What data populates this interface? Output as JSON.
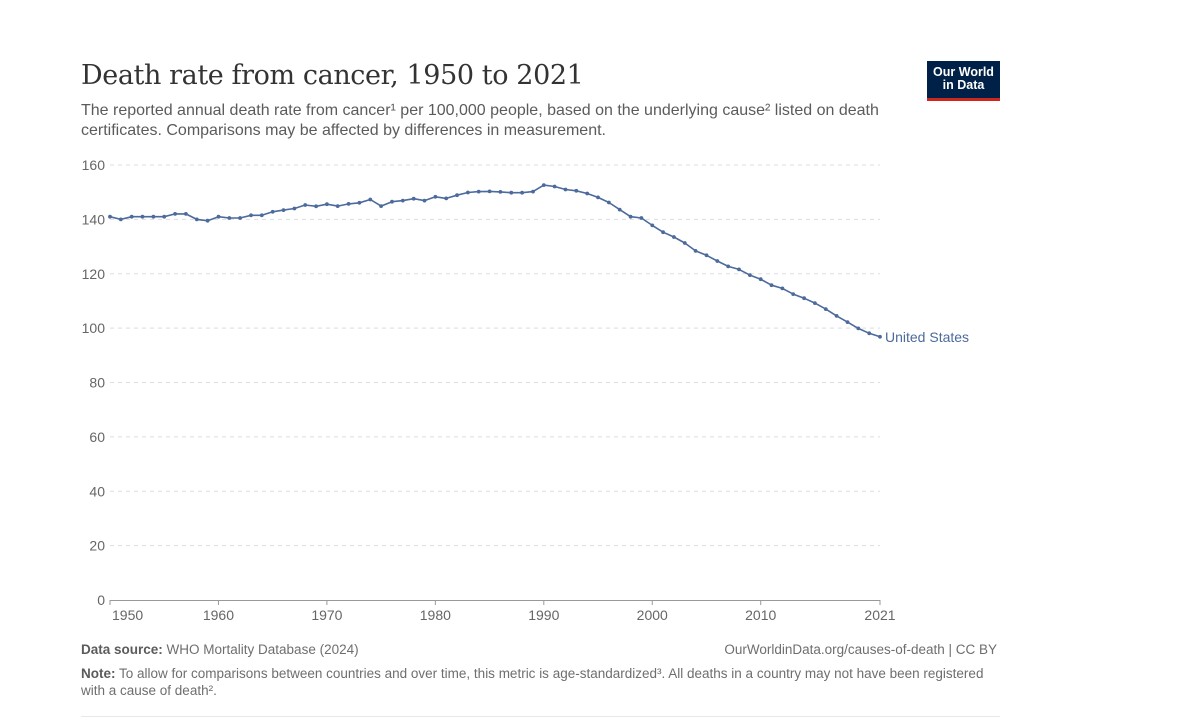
{
  "header": {
    "title": "Death rate from cancer, 1950 to 2021",
    "subtitle": "The reported annual death rate from cancer¹ per 100,000 people, based on the underlying cause² listed on death certificates. Comparisons may be affected by differences in measurement."
  },
  "logo": {
    "line1": "Our World",
    "line2": "in Data",
    "bg_color": "#002147",
    "accent_color": "#ce261e"
  },
  "footer": {
    "source_label": "Data source:",
    "source_text": " WHO Mortality Database (2024)",
    "url_text": "OurWorldinData.org/causes-of-death | CC BY",
    "note_label": "Note:",
    "note_text": " To allow for comparisons between countries and over time, this metric is age-standardized³. All deaths in a country may not have been registered with a cause of death²."
  },
  "chart_data": {
    "type": "line",
    "xlim": [
      1950,
      2021
    ],
    "ylim": [
      0,
      160
    ],
    "x_ticks": [
      1950,
      1960,
      1970,
      1980,
      1990,
      2000,
      2010,
      2021
    ],
    "y_ticks": [
      0,
      20,
      40,
      60,
      80,
      100,
      120,
      140,
      160
    ],
    "grid": "horizontal dashed",
    "legend": "end-of-line label",
    "series": [
      {
        "name": "United States",
        "color": "#4c6a9c",
        "x": [
          1950,
          1951,
          1952,
          1953,
          1954,
          1955,
          1956,
          1957,
          1958,
          1959,
          1960,
          1961,
          1962,
          1963,
          1964,
          1965,
          1966,
          1967,
          1968,
          1969,
          1970,
          1971,
          1972,
          1973,
          1974,
          1975,
          1976,
          1977,
          1978,
          1979,
          1980,
          1981,
          1982,
          1983,
          1984,
          1985,
          1986,
          1987,
          1988,
          1989,
          1990,
          1991,
          1992,
          1993,
          1994,
          1995,
          1996,
          1997,
          1998,
          1999,
          2000,
          2001,
          2002,
          2003,
          2004,
          2005,
          2006,
          2007,
          2008,
          2009,
          2010,
          2011,
          2012,
          2013,
          2014,
          2015,
          2016,
          2017,
          2018,
          2019,
          2020,
          2021
        ],
        "values": [
          141,
          140,
          141,
          141,
          141,
          141,
          142,
          142,
          140,
          139.5,
          141,
          140.5,
          140.5,
          141.5,
          141.5,
          142.8,
          143.4,
          144,
          145.3,
          144.8,
          145.6,
          144.9,
          145.7,
          146.1,
          147.3,
          144.9,
          146.5,
          146.9,
          147.6,
          146.9,
          148.3,
          147.7,
          148.9,
          149.9,
          150.2,
          150.3,
          150.1,
          149.8,
          149.8,
          150.2,
          152.6,
          152.1,
          151,
          150.5,
          149.5,
          148.1,
          146.2,
          143.6,
          141,
          140.5,
          137.8,
          135.3,
          133.5,
          131.3,
          128.4,
          126.8,
          124.7,
          122.7,
          121.6,
          119.5,
          118,
          115.8,
          114.6,
          112.5,
          111,
          109.2,
          107,
          104.5,
          102.2,
          99.9,
          98.1,
          96.8
        ]
      }
    ]
  }
}
